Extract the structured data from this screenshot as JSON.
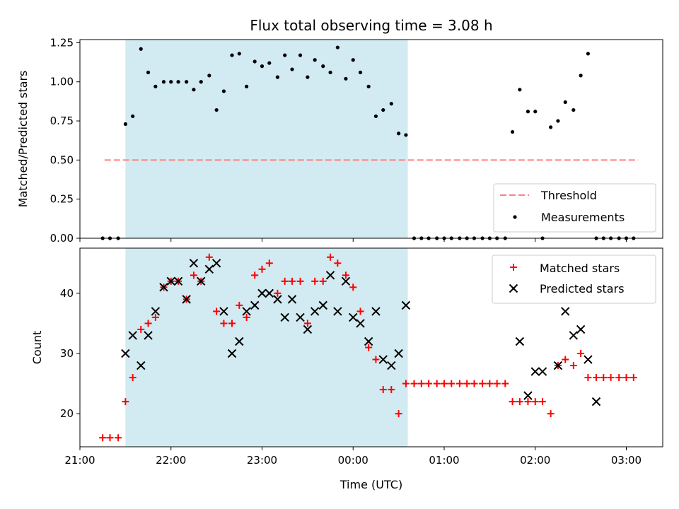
{
  "chart_data": [
    {
      "type": "scatter",
      "title": "Flux total observing time = 3.08 h",
      "ylabel": "Matched/Predicted stars",
      "xlabel": "",
      "ylim": [
        0,
        1.27
      ],
      "yticks": [
        0.0,
        0.25,
        0.5,
        0.75,
        1.0,
        1.25
      ],
      "ytick_labels": [
        "0.00",
        "0.25",
        "0.50",
        "0.75",
        "1.00",
        "1.25"
      ],
      "xlim_hours": [
        21.0,
        27.4
      ],
      "observing_window_hours": [
        21.5,
        24.6
      ],
      "threshold": {
        "name": "Threshold",
        "value": 0.5,
        "x_range_hours": [
          21.27,
          27.13
        ],
        "color": "#ff8080"
      },
      "legend": {
        "position": "lower-right",
        "entries": [
          "Threshold",
          "Measurements"
        ]
      },
      "series": [
        {
          "name": "Measurements",
          "color": "#000000",
          "x_hours": [
            21.25,
            21.33,
            21.42,
            21.5,
            21.58,
            21.67,
            21.75,
            21.83,
            21.92,
            22.0,
            22.08,
            22.17,
            22.25,
            22.33,
            22.42,
            22.5,
            22.58,
            22.67,
            22.75,
            22.83,
            22.92,
            23.0,
            23.08,
            23.17,
            23.25,
            23.33,
            23.42,
            23.5,
            23.58,
            23.67,
            23.75,
            23.83,
            23.92,
            24.0,
            24.08,
            24.17,
            24.25,
            24.33,
            24.42,
            24.5,
            24.58,
            24.67,
            24.75,
            24.83,
            24.92,
            25.0,
            25.08,
            25.17,
            25.25,
            25.33,
            25.42,
            25.5,
            25.58,
            25.67,
            25.75,
            25.83,
            25.92,
            26.0,
            26.08,
            26.17,
            26.25,
            26.33,
            26.42,
            26.5,
            26.58,
            26.67,
            26.75,
            26.83,
            26.92,
            27.0,
            27.08
          ],
          "y": [
            0,
            0,
            0,
            0.73,
            0.78,
            1.21,
            1.06,
            0.97,
            1.0,
            1.0,
            1.0,
            1.0,
            0.95,
            1.0,
            1.04,
            0.82,
            0.94,
            1.17,
            1.18,
            0.97,
            1.13,
            1.1,
            1.12,
            1.03,
            1.17,
            1.08,
            1.17,
            1.03,
            1.14,
            1.1,
            1.06,
            1.22,
            1.02,
            1.14,
            1.06,
            0.97,
            0.78,
            0.82,
            0.86,
            0.67,
            0.66,
            0,
            0,
            0,
            0,
            0,
            0,
            0,
            0,
            0,
            0,
            0,
            0,
            0,
            0.68,
            0.95,
            0.81,
            0.81,
            0,
            0.71,
            0.75,
            0.87,
            0.82,
            1.04,
            1.18,
            0,
            0,
            0,
            0,
            0,
            0
          ]
        }
      ]
    },
    {
      "type": "scatter",
      "title": "",
      "ylabel": "Count",
      "xlabel": "Time (UTC)",
      "ylim": [
        14.5,
        47.5
      ],
      "yticks": [
        20,
        30,
        40
      ],
      "ytick_labels": [
        "20",
        "30",
        "40"
      ],
      "xlim_hours": [
        21.0,
        27.4
      ],
      "xticks_hours": [
        21,
        22,
        23,
        24,
        25,
        26,
        27
      ],
      "xtick_labels": [
        "21:00",
        "22:00",
        "23:00",
        "00:00",
        "01:00",
        "02:00",
        "03:00"
      ],
      "observing_window_hours": [
        21.5,
        24.6
      ],
      "legend": {
        "position": "top-right",
        "entries": [
          "Matched stars",
          "Predicted stars"
        ]
      },
      "series": [
        {
          "name": "Matched stars",
          "marker": "plus",
          "color": "#ff0000",
          "x_hours": [
            21.25,
            21.33,
            21.42,
            21.5,
            21.58,
            21.67,
            21.75,
            21.83,
            21.92,
            22.0,
            22.08,
            22.17,
            22.25,
            22.33,
            22.42,
            22.5,
            22.58,
            22.67,
            22.75,
            22.83,
            22.92,
            23.0,
            23.08,
            23.17,
            23.25,
            23.33,
            23.42,
            23.5,
            23.58,
            23.67,
            23.75,
            23.83,
            23.92,
            24.0,
            24.08,
            24.17,
            24.25,
            24.33,
            24.42,
            24.5,
            24.58,
            24.67,
            24.75,
            24.83,
            24.92,
            25.0,
            25.08,
            25.17,
            25.25,
            25.33,
            25.42,
            25.5,
            25.58,
            25.67,
            25.75,
            25.83,
            25.92,
            26.0,
            26.08,
            26.17,
            26.25,
            26.33,
            26.42,
            26.5,
            26.58,
            26.67,
            26.75,
            26.83,
            26.92,
            27.0,
            27.08
          ],
          "y": [
            16,
            16,
            16,
            22,
            26,
            34,
            35,
            36,
            41,
            42,
            42,
            39,
            43,
            42,
            46,
            37,
            35,
            35,
            38,
            36,
            43,
            44,
            45,
            40,
            42,
            42,
            42,
            35,
            42,
            42,
            46,
            45,
            43,
            41,
            37,
            31,
            29,
            24,
            24,
            20,
            25,
            25,
            25,
            25,
            25,
            25,
            25,
            25,
            25,
            25,
            25,
            25,
            25,
            25,
            22,
            22,
            22,
            22,
            22,
            20,
            28,
            29,
            28,
            30,
            26,
            26,
            26,
            26,
            26,
            26,
            26
          ]
        },
        {
          "name": "Predicted stars",
          "marker": "x",
          "color": "#000000",
          "x_hours": [
            21.5,
            21.58,
            21.67,
            21.75,
            21.83,
            21.92,
            22.0,
            22.08,
            22.17,
            22.25,
            22.33,
            22.42,
            22.5,
            22.58,
            22.67,
            22.75,
            22.83,
            22.92,
            23.0,
            23.08,
            23.17,
            23.25,
            23.33,
            23.42,
            23.5,
            23.58,
            23.67,
            23.75,
            23.83,
            23.92,
            24.0,
            24.08,
            24.17,
            24.25,
            24.33,
            24.42,
            24.5,
            24.58,
            25.83,
            25.92,
            26.0,
            26.08,
            26.25,
            26.33,
            26.42,
            26.5,
            26.58,
            26.67
          ],
          "y": [
            30,
            33,
            28,
            33,
            37,
            41,
            42,
            42,
            39,
            45,
            42,
            44,
            45,
            37,
            30,
            32,
            37,
            38,
            40,
            40,
            39,
            36,
            39,
            36,
            34,
            37,
            38,
            43,
            37,
            42,
            36,
            35,
            32,
            37,
            29,
            28,
            30,
            38,
            32,
            23,
            27,
            27,
            28,
            37,
            33,
            34,
            29,
            22
          ]
        }
      ]
    }
  ]
}
